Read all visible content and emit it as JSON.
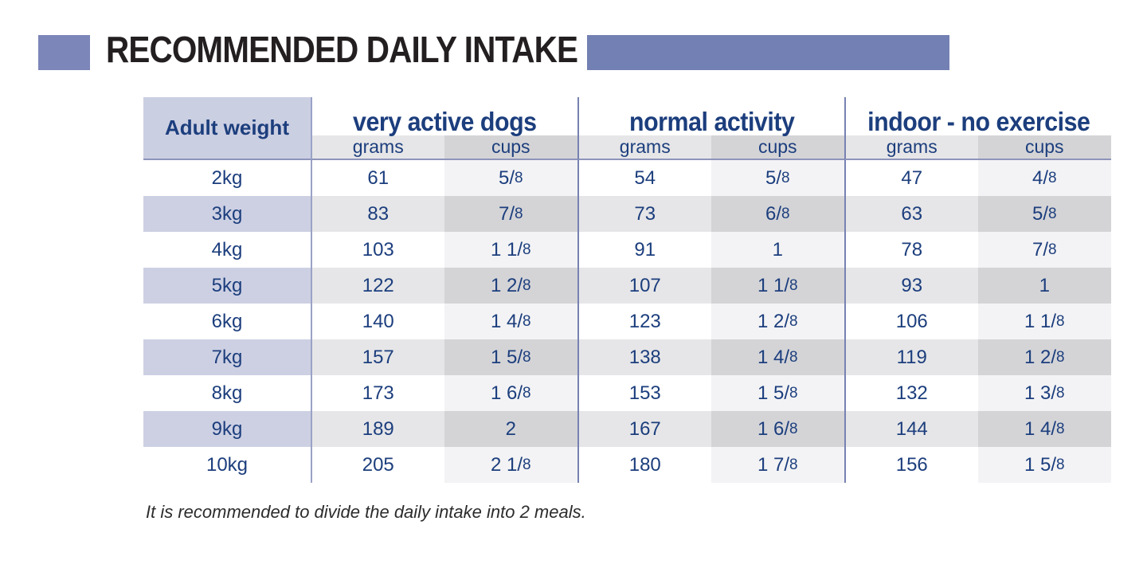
{
  "header": {
    "title": "RECOMMENDED DAILY INTAKE"
  },
  "table": {
    "corner_label": "Adult weight",
    "groups": [
      {
        "label": "very active dogs"
      },
      {
        "label": "normal activity"
      },
      {
        "label": "indoor - no exercise"
      }
    ],
    "unit_headers": [
      "grams",
      "cups",
      "grams",
      "cups",
      "grams",
      "cups"
    ],
    "rows": [
      {
        "weight": "2kg",
        "values": [
          "61",
          "5/8",
          "54",
          "5/8",
          "47",
          "4/8"
        ]
      },
      {
        "weight": "3kg",
        "values": [
          "83",
          "7/8",
          "73",
          "6/8",
          "63",
          "5/8"
        ]
      },
      {
        "weight": "4kg",
        "values": [
          "103",
          "1 1/8",
          "91",
          "1",
          "78",
          "7/8"
        ]
      },
      {
        "weight": "5kg",
        "values": [
          "122",
          "1 2/8",
          "107",
          "1 1/8",
          "93",
          "1"
        ]
      },
      {
        "weight": "6kg",
        "values": [
          "140",
          "1 4/8",
          "123",
          "1 2/8",
          "106",
          "1 1/8"
        ]
      },
      {
        "weight": "7kg",
        "values": [
          "157",
          "1 5/8",
          "138",
          "1 4/8",
          "119",
          "1 2/8"
        ]
      },
      {
        "weight": "8kg",
        "values": [
          "173",
          "1 6/8",
          "153",
          "1 5/8",
          "132",
          "1 3/8"
        ]
      },
      {
        "weight": "9kg",
        "values": [
          "189",
          "2",
          "167",
          "1 6/8",
          "144",
          "1 4/8"
        ]
      },
      {
        "weight": "10kg",
        "values": [
          "205",
          "2 1/8",
          "180",
          "1 7/8",
          "156",
          "1 5/8"
        ]
      }
    ],
    "note": "It is recommended to divide the daily intake into 2 meals."
  },
  "colors": {
    "accent_square": "#7d86b9",
    "accent_bar": "#7380b3",
    "header_lavender": "#cdd0e3",
    "text_navy": "#1c3e7d"
  }
}
